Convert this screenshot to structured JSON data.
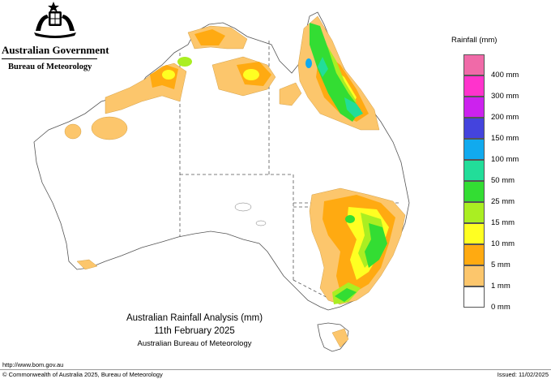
{
  "header": {
    "government": "Australian Government",
    "bureau": "Bureau of Meteorology"
  },
  "legend": {
    "title": "Rainfall (mm)",
    "bands": [
      {
        "label": "",
        "color": "#f06aa8"
      },
      {
        "label": "400 mm",
        "color": "#ff33cc"
      },
      {
        "label": "300 mm",
        "color": "#cc22ee"
      },
      {
        "label": "200 mm",
        "color": "#4444dd"
      },
      {
        "label": "150 mm",
        "color": "#11aaee"
      },
      {
        "label": "100 mm",
        "color": "#22dd99"
      },
      {
        "label": "50 mm",
        "color": "#33dd33"
      },
      {
        "label": "25 mm",
        "color": "#aaee22"
      },
      {
        "label": "15 mm",
        "color": "#ffff22"
      },
      {
        "label": "10 mm",
        "color": "#ffaa11"
      },
      {
        "label": "5 mm",
        "color": "#fcc66c"
      },
      {
        "label": "1 mm",
        "color": "#ffffff"
      },
      {
        "label": "0 mm",
        "color": null
      }
    ]
  },
  "map": {
    "title": "Australian Rainfall Analysis (mm)",
    "date": "11th February 2025",
    "agency": "Australian Bureau of Meteorology"
  },
  "footer": {
    "url": "http://www.bom.gov.au",
    "copyright": "© Commonwealth of Australia 2025, Bureau of Meteorology",
    "issued": "Issued: 11/02/2025"
  }
}
